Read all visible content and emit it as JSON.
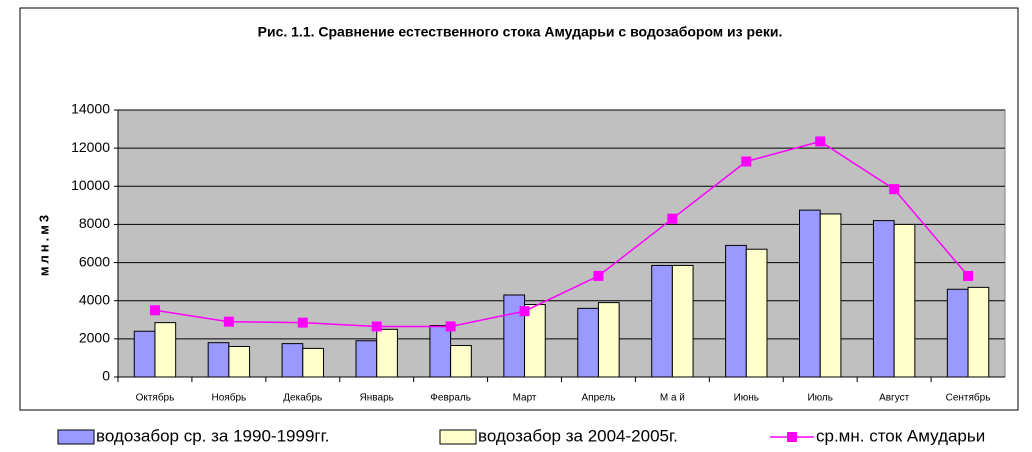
{
  "chart_data": {
    "type": "bar",
    "title": "Рис. 1.1.  Сравнение  естественного стока  Амударьи с водозабором из реки.",
    "y_label": "млн.м3",
    "categories": [
      "Октябрь",
      "Ноябрь",
      "Декабрь",
      "Январь",
      "Февраль",
      "Март",
      "Апрель",
      "М а й",
      "Июнь",
      "Июль",
      "Август",
      "Сентябрь"
    ],
    "series": [
      {
        "name": "водозабор ср. за 1990-1999гг.",
        "type": "bar",
        "color": "#9999ff",
        "values": [
          2400,
          1800,
          1750,
          1900,
          2700,
          4300,
          3600,
          5850,
          6900,
          8750,
          8200,
          4600
        ]
      },
      {
        "name": "водозабор  за 2004-2005г.",
        "type": "bar",
        "color": "#ffffcc",
        "values": [
          2850,
          1600,
          1500,
          2500,
          1650,
          3800,
          3900,
          5850,
          6700,
          8550,
          8000,
          4700
        ]
      },
      {
        "name": "ср.мн. сток Амударьи",
        "type": "line",
        "color": "#ff00ff",
        "values": [
          3500,
          2900,
          2850,
          2650,
          2650,
          3450,
          5300,
          8300,
          11300,
          12350,
          9850,
          5300
        ]
      }
    ],
    "ylim": [
      0,
      14000
    ],
    "yticks": [
      0,
      2000,
      4000,
      6000,
      8000,
      10000,
      12000,
      14000
    ],
    "grid": true,
    "plot_background": "#c0c0c0"
  }
}
